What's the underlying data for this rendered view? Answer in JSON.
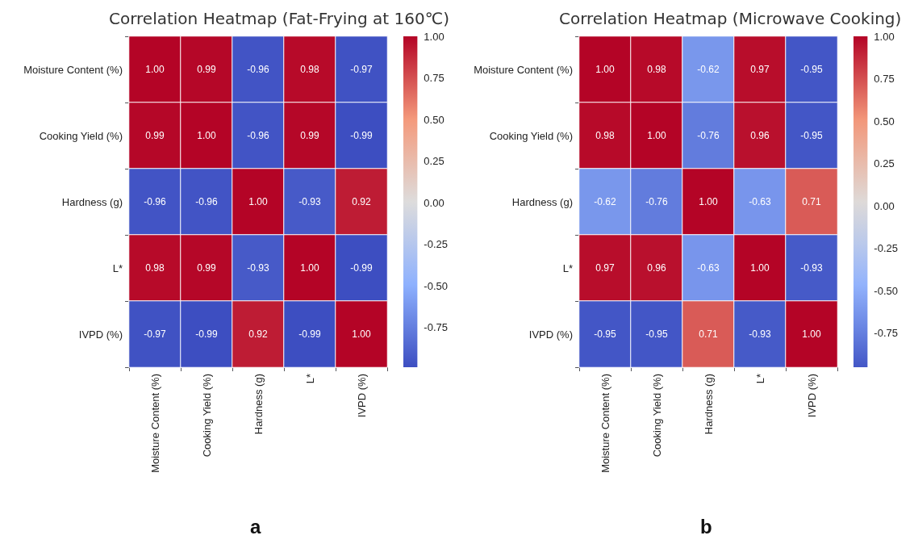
{
  "chart_data": [
    {
      "type": "heatmap",
      "title": "Correlation Heatmap (Fat-Frying at 160℃)",
      "categories": [
        "Moisture Content (%)",
        "Cooking Yield (%)",
        "Hardness (g)",
        "L*",
        "IVPD (%)"
      ],
      "y_categories": [
        "Moisture Content (%)",
        "Cooking Yield (%)",
        "Hardness (g)",
        "L*",
        "IVPD (%)"
      ],
      "cells": [
        [
          1.0,
          0.99,
          -0.96,
          0.98,
          -0.97
        ],
        [
          0.99,
          1.0,
          -0.96,
          0.99,
          -0.99
        ],
        [
          -0.96,
          -0.96,
          1.0,
          -0.93,
          0.92
        ],
        [
          0.98,
          0.99,
          -0.93,
          1.0,
          -0.99
        ],
        [
          -0.97,
          -0.99,
          0.92,
          -0.99,
          1.0
        ]
      ],
      "clim": [
        -0.99,
        1
      ],
      "cticks": [
        {
          "value": 1,
          "label": "1.00"
        },
        {
          "value": 0.75,
          "label": "0.75"
        },
        {
          "value": 0.5,
          "label": "0.50"
        },
        {
          "value": 0.25,
          "label": "0.25"
        },
        {
          "value": 0,
          "label": "0.00"
        },
        {
          "value": -0.25,
          "label": "-0.25"
        },
        {
          "value": -0.5,
          "label": "-0.50"
        },
        {
          "value": -0.75,
          "label": "-0.75"
        }
      ],
      "cell_labels": [
        [
          "1.00",
          "0.99",
          "-0.96",
          "0.98",
          "-0.97"
        ],
        [
          "0.99",
          "1.00",
          "-0.96",
          "0.99",
          "-0.99"
        ],
        [
          "-0.96",
          "-0.96",
          "1.00",
          "-0.93",
          "0.92"
        ],
        [
          "0.98",
          "0.99",
          "-0.93",
          "1.00",
          "-0.99"
        ],
        [
          "-0.97",
          "-0.99",
          "0.92",
          "-0.99",
          "1.00"
        ]
      ],
      "annotations": [
        "a"
      ]
    },
    {
      "type": "heatmap",
      "title": "Correlation Heatmap (Microwave Cooking)",
      "categories": [
        "Moisture Content (%)",
        "Cooking Yield (%)",
        "Hardness (g)",
        "L*",
        "IVPD (%)"
      ],
      "y_categories": [
        "Moisture Content (%)",
        "Cooking Yield (%)",
        "Hardness (g)",
        "L*",
        "IVPD (%)"
      ],
      "cells": [
        [
          1.0,
          0.98,
          -0.62,
          0.97,
          -0.95
        ],
        [
          0.98,
          1.0,
          -0.76,
          0.96,
          -0.95
        ],
        [
          -0.62,
          -0.76,
          1.0,
          -0.63,
          0.71
        ],
        [
          0.97,
          0.96,
          -0.63,
          1.0,
          -0.93
        ],
        [
          -0.95,
          -0.95,
          0.71,
          -0.93,
          1.0
        ]
      ],
      "clim": [
        -0.95,
        1
      ],
      "cticks": [
        {
          "value": 1,
          "label": "1.00"
        },
        {
          "value": 0.75,
          "label": "0.75"
        },
        {
          "value": 0.5,
          "label": "0.50"
        },
        {
          "value": 0.25,
          "label": "0.25"
        },
        {
          "value": 0,
          "label": "0.00"
        },
        {
          "value": -0.25,
          "label": "-0.25"
        },
        {
          "value": -0.5,
          "label": "-0.50"
        },
        {
          "value": -0.75,
          "label": "-0.75"
        }
      ],
      "cell_labels": [
        [
          "1.00",
          "0.98",
          "-0.62",
          "0.97",
          "-0.95"
        ],
        [
          "0.98",
          "1.00",
          "-0.76",
          "0.96",
          "-0.95"
        ],
        [
          "-0.62",
          "-0.76",
          "1.00",
          "-0.63",
          "0.71"
        ],
        [
          "0.97",
          "0.96",
          "-0.63",
          "1.00",
          "-0.93"
        ],
        [
          "-0.95",
          "-0.95",
          "0.71",
          "-0.93",
          "1.00"
        ]
      ],
      "annotations": [
        "b"
      ]
    }
  ]
}
